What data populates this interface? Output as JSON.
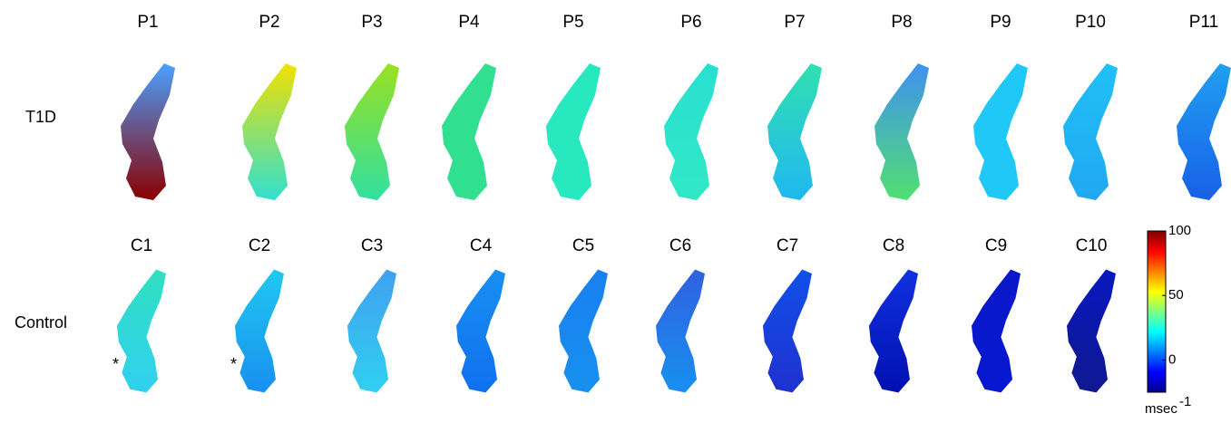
{
  "rows": [
    {
      "label": "T1D",
      "panels": [
        {
          "label": "P1",
          "colors": [
            "#4aa0ff",
            "#8b0000"
          ]
        },
        {
          "label": "P2",
          "colors": [
            "#f2e000",
            "#30e0d0"
          ]
        },
        {
          "label": "P3",
          "colors": [
            "#9ae020",
            "#30e0a0"
          ]
        },
        {
          "label": "P4",
          "colors": [
            "#30e090",
            "#30e090"
          ]
        },
        {
          "label": "P5",
          "colors": [
            "#28e8c0",
            "#28e8c0"
          ]
        },
        {
          "label": "P6",
          "colors": [
            "#28e0d0",
            "#30e8c8"
          ]
        },
        {
          "label": "P7",
          "colors": [
            "#30e0b0",
            "#20b8f0"
          ]
        },
        {
          "label": "P8",
          "colors": [
            "#4090f0",
            "#50e070"
          ]
        },
        {
          "label": "P9",
          "colors": [
            "#20c8f8",
            "#20c8f8"
          ]
        },
        {
          "label": "P10",
          "colors": [
            "#20c0f8",
            "#20a8f0"
          ]
        },
        {
          "label": "P11",
          "colors": [
            "#20a0f0",
            "#1860e8"
          ]
        }
      ]
    },
    {
      "label": "Control",
      "panels": [
        {
          "label": "C1",
          "colors": [
            "#30e0c0",
            "#30d0f0"
          ],
          "marker": "*"
        },
        {
          "label": "C2",
          "colors": [
            "#20c8f0",
            "#1890f0"
          ],
          "marker": "*"
        },
        {
          "label": "C3",
          "colors": [
            "#40a0f0",
            "#30d0f0"
          ]
        },
        {
          "label": "C4",
          "colors": [
            "#1890f0",
            "#1070f0"
          ]
        },
        {
          "label": "C5",
          "colors": [
            "#1880f0",
            "#1890f0"
          ]
        },
        {
          "label": "C6",
          "colors": [
            "#3060e0",
            "#1890f0"
          ]
        },
        {
          "label": "C7",
          "colors": [
            "#1050e8",
            "#2030d0"
          ]
        },
        {
          "label": "C8",
          "colors": [
            "#1030e0",
            "#0010b0"
          ]
        },
        {
          "label": "C9",
          "colors": [
            "#0818c8",
            "#0818d0"
          ]
        },
        {
          "label": "C10",
          "colors": [
            "#0818c0",
            "#101890"
          ]
        }
      ]
    }
  ],
  "colorbar": {
    "lim": [
      -25,
      100
    ],
    "ticks": [
      0,
      50,
      100
    ],
    "unit": "msec",
    "unit_exponent": "-1"
  }
}
